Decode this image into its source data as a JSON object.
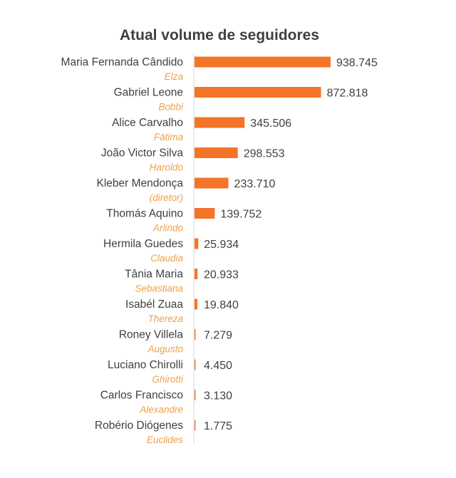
{
  "chart_data": {
    "type": "bar",
    "orientation": "horizontal",
    "title": "Atual volume de seguidores",
    "xlabel": "",
    "ylabel": "",
    "xlim": [
      0,
      938745
    ],
    "grid": false,
    "legend": "none",
    "bar_color": "#f47428",
    "role_color": "#f0a04a",
    "categories": [
      {
        "name": "Maria Fernanda Cândido",
        "role": "Elza"
      },
      {
        "name": "Gabriel Leone",
        "role": "Bobbi"
      },
      {
        "name": "Alice Carvalho",
        "role": "Fátima"
      },
      {
        "name": "João Victor Silva",
        "role": "Haroldo"
      },
      {
        "name": "Kleber Mendonça",
        "role": "(diretor)"
      },
      {
        "name": "Thomás Aquino",
        "role": "Arlindo"
      },
      {
        "name": "Hermila Guedes",
        "role": "Claudia"
      },
      {
        "name": "Tânia Maria",
        "role": "Sebastiana"
      },
      {
        "name": "Isabél Zuaa",
        "role": "Thereza"
      },
      {
        "name": "Roney Villela",
        "role": "Augusto"
      },
      {
        "name": "Luciano Chirolli",
        "role": "Ghirotti"
      },
      {
        "name": "Carlos Francisco",
        "role": "Alexandre"
      },
      {
        "name": "Robério Diógenes",
        "role": "Euclides"
      }
    ],
    "values": [
      938745,
      872818,
      345506,
      298553,
      233710,
      139752,
      25934,
      20933,
      19840,
      7279,
      4450,
      3130,
      1775
    ],
    "value_labels": [
      "938.745",
      "872.818",
      "345.506",
      "298.553",
      "233.710",
      "139.752",
      "25.934",
      "20.933",
      "19.840",
      "7.279",
      "4.450",
      "3.130",
      "1.775"
    ]
  }
}
